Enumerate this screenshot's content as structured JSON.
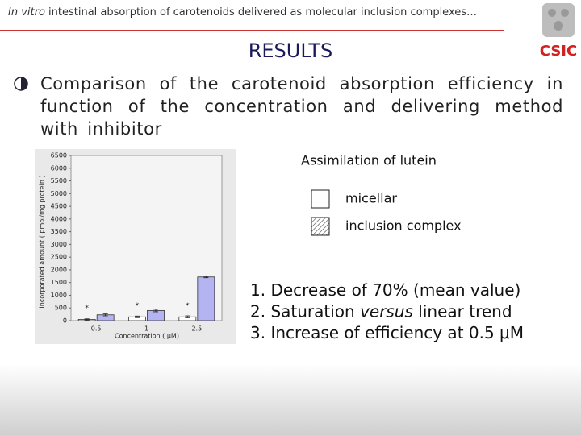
{
  "header": {
    "title_italic": "In vitro",
    "title": "intestinal absorption of carotenoids delivered as molecular inclusion complexes…",
    "logo": "CSIC"
  },
  "heading": "RESULTS",
  "bullet": "Comparison of the carotenoid absorption efficiency in function of the concentration and delivering method with inhibitor",
  "chart_data": {
    "type": "bar",
    "title": "Assimilation of lutein",
    "x_label": "Concentration ( μM)",
    "y_label": "Incorporated amount ( pmol/mg protein )",
    "categories": [
      "0.5",
      "1",
      "2.5"
    ],
    "series": [
      {
        "name": "micellar",
        "color": "#ffffff",
        "values": [
          50,
          150,
          150
        ],
        "errors": [
          20,
          30,
          40
        ]
      },
      {
        "name": "inclusion complex",
        "color": "#b4b4f2",
        "values": [
          230,
          400,
          1720
        ],
        "errors": [
          40,
          50,
          30
        ]
      }
    ],
    "annotations": [
      "*",
      "*",
      "*"
    ],
    "ylim": [
      0,
      6500
    ],
    "yticks": [
      0,
      500,
      1000,
      1500,
      2000,
      2500,
      3000,
      3500,
      4000,
      4500,
      5000,
      5500,
      6000,
      6500
    ]
  },
  "findings": [
    [
      "1. Decrease of 70% (mean value)"
    ],
    [
      "2. Saturation ",
      "versus",
      " linear trend"
    ],
    [
      "3. Increase of efficiency at 0.5 μM"
    ]
  ]
}
